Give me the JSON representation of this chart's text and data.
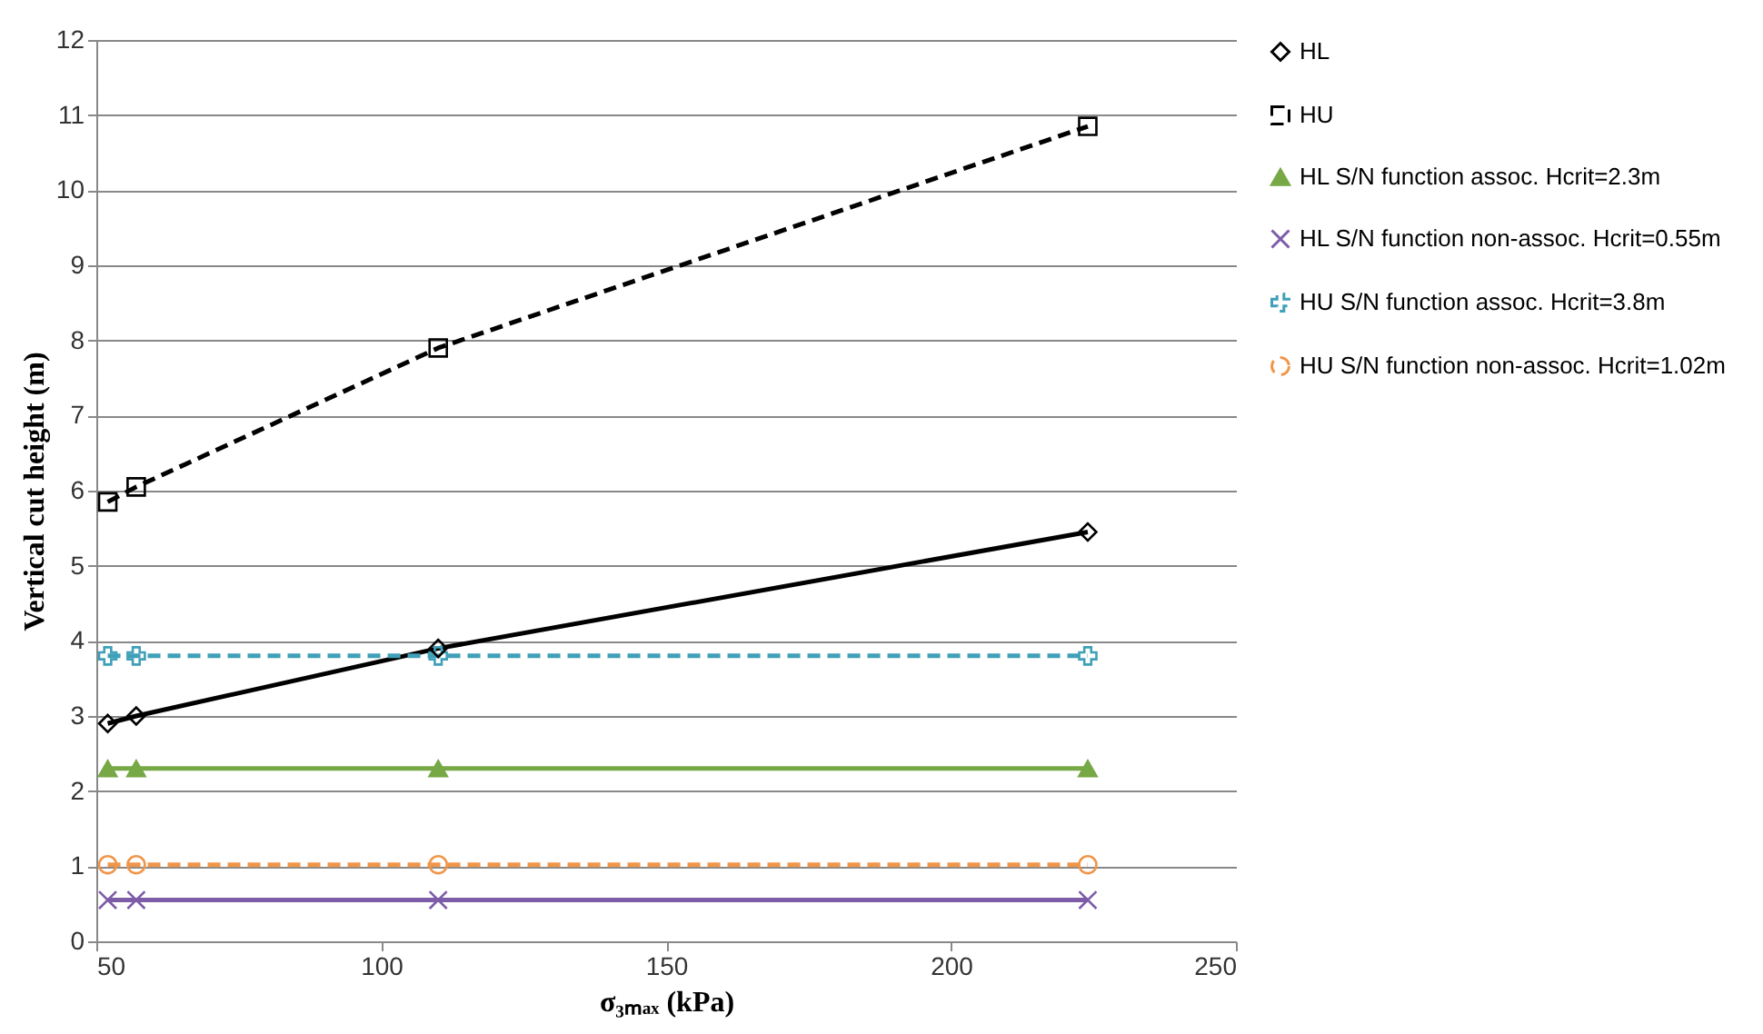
{
  "chart_data": {
    "type": "line",
    "xlabel": "σ₃ₘₐₓ (kPa)",
    "ylabel": "Vertical cut height (m)",
    "xlim": [
      50,
      250
    ],
    "xticks": [
      50,
      100,
      150,
      200,
      250
    ],
    "ylim": [
      0,
      12
    ],
    "yticks": [
      0,
      1,
      2,
      3,
      4,
      5,
      6,
      7,
      8,
      9,
      10,
      11,
      12
    ],
    "grid": "y",
    "legend": "right",
    "series": [
      {
        "name": "HL",
        "color": "#000000",
        "marker": "diamond",
        "line_style": "solid",
        "x": [
          52,
          57,
          110,
          224
        ],
        "values": [
          2.9,
          3.0,
          3.9,
          5.45
        ]
      },
      {
        "name": "HU",
        "color": "#000000",
        "marker": "square",
        "line_style": "dashed",
        "x": [
          52,
          57,
          110,
          224
        ],
        "values": [
          5.85,
          6.05,
          7.9,
          10.85
        ]
      },
      {
        "name": "HL S/N function assoc. Hcrit=2.3m",
        "color": "#77a846",
        "marker": "triangle",
        "line_style": "solid",
        "x": [
          52,
          57,
          110,
          224
        ],
        "values": [
          2.3,
          2.3,
          2.3,
          2.3
        ]
      },
      {
        "name": "HL S/N function non-assoc. Hcrit=0.55m",
        "color": "#7d5ca8",
        "marker": "cross",
        "line_style": "solid",
        "x": [
          52,
          57,
          110,
          224
        ],
        "values": [
          0.55,
          0.55,
          0.55,
          0.55
        ]
      },
      {
        "name": "HU S/N function assoc. Hcrit=3.8m",
        "color": "#3fa0b8",
        "marker": "plus",
        "line_style": "dashed",
        "x": [
          52,
          57,
          110,
          224
        ],
        "values": [
          3.8,
          3.8,
          3.8,
          3.8
        ]
      },
      {
        "name": "HU S/N function non-assoc. Hcrit=1.02m",
        "color": "#f0964a",
        "marker": "circle",
        "line_style": "dashed",
        "x": [
          52,
          57,
          110,
          224
        ],
        "values": [
          1.02,
          1.02,
          1.02,
          1.02
        ]
      }
    ]
  }
}
